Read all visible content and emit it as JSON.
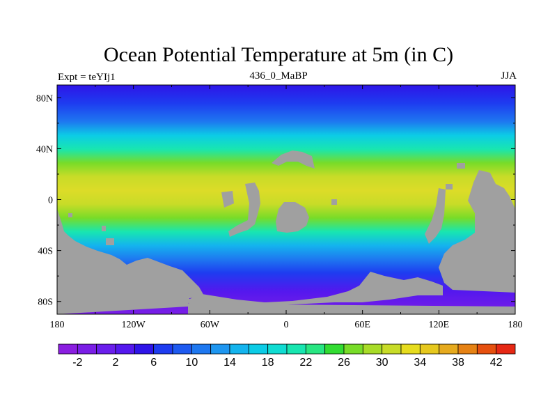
{
  "chart_data": {
    "type": "heatmap",
    "title": "Ocean Potential Temperature at 5m (in C)",
    "left_label": "Expt = teYIj1",
    "center_label": "436_0_MaBP",
    "right_label": "JJA",
    "x_ticks": [
      "180",
      "120W",
      "60W",
      "0",
      "60E",
      "120E",
      "180"
    ],
    "y_ticks": [
      "80N",
      "40N",
      "0",
      "40S",
      "80S"
    ],
    "xlim": [
      -180,
      180
    ],
    "ylim": [
      -90,
      90
    ],
    "colorbar": {
      "levels": [
        -4,
        -2,
        0,
        2,
        4,
        6,
        8,
        10,
        12,
        14,
        16,
        18,
        20,
        22,
        24,
        26,
        28,
        30,
        32,
        34,
        36,
        38,
        40,
        42,
        44
      ],
      "tick_labels": [
        "-2",
        "2",
        "6",
        "10",
        "14",
        "18",
        "22",
        "26",
        "30",
        "34",
        "38",
        "42"
      ],
      "colors": [
        "#8a1ee0",
        "#7a1ee6",
        "#6a1eec",
        "#5418ee",
        "#2e14e8",
        "#1e3cf0",
        "#1e5af0",
        "#1e78f0",
        "#1e96f0",
        "#14b4ee",
        "#0ccce6",
        "#10dcd2",
        "#18e6b0",
        "#28e682",
        "#32dc32",
        "#78dc28",
        "#a8dc28",
        "#c8dc28",
        "#e6dc1e",
        "#e6c81e",
        "#e6aa1e",
        "#e68214",
        "#e6500f",
        "#e62814"
      ]
    }
  }
}
